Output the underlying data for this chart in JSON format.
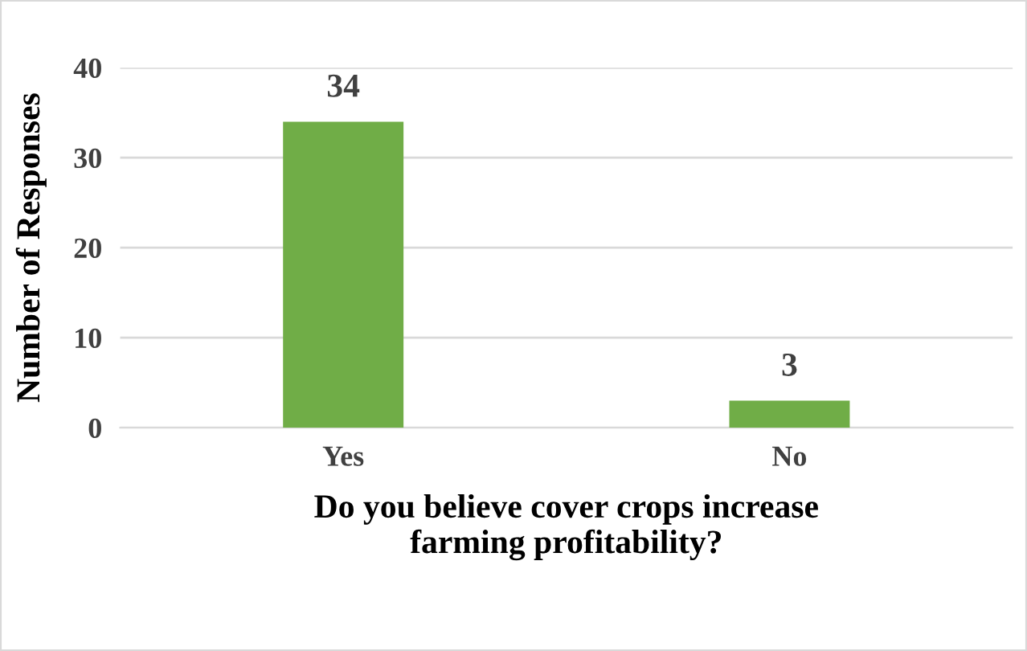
{
  "chart_data": {
    "type": "bar",
    "categories": [
      "Yes",
      "No"
    ],
    "values": [
      34,
      3
    ],
    "color": "#70ad47",
    "xlabel": "Do you believe cover crops increase\nfarming profitability?",
    "ylabel": "Number of Responses",
    "ylim": [
      0,
      40
    ],
    "yticks": [
      0,
      10,
      20,
      30,
      40
    ],
    "grid": "y",
    "data_labels": true
  }
}
